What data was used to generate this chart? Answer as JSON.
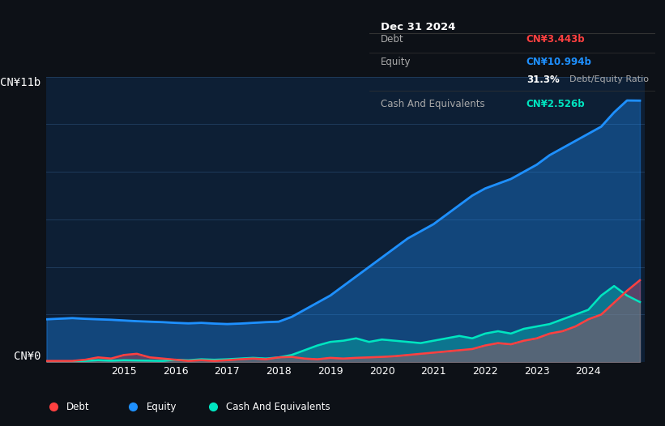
{
  "bg_color": "#0d1117",
  "chart_bg": "#0d1f35",
  "plot_bg": "#0d1f35",
  "title_box_bg": "#0a0a0a",
  "ylim": [
    0,
    12
  ],
  "ylabel_top": "CN¥11b",
  "ylabel_bottom": "CN¥0",
  "x_ticks": [
    2014.5,
    2015,
    2016,
    2017,
    2018,
    2019,
    2020,
    2021,
    2022,
    2023,
    2024
  ],
  "x_tick_labels": [
    "",
    "2015",
    "2016",
    "2017",
    "2018",
    "2019",
    "2020",
    "2021",
    "2022",
    "2023",
    "2024"
  ],
  "equity_color": "#1e90ff",
  "debt_color": "#ff4040",
  "cash_color": "#00e5c0",
  "legend_bg": "#1a2535",
  "tooltip": {
    "date": "Dec 31 2024",
    "debt_label": "Debt",
    "debt_value": "CN¥3.443b",
    "equity_label": "Equity",
    "equity_value": "CN¥10.994b",
    "ratio_value": "31.3%",
    "ratio_label": "Debt/Equity Ratio",
    "cash_label": "Cash And Equivalents",
    "cash_value": "CN¥2.526b"
  },
  "equity_data_x": [
    2013.5,
    2014.0,
    2014.25,
    2014.5,
    2014.75,
    2015.0,
    2015.25,
    2015.5,
    2015.75,
    2016.0,
    2016.25,
    2016.5,
    2016.75,
    2017.0,
    2017.25,
    2017.5,
    2017.75,
    2018.0,
    2018.25,
    2018.5,
    2018.75,
    2019.0,
    2019.25,
    2019.5,
    2019.75,
    2020.0,
    2020.25,
    2020.5,
    2020.75,
    2021.0,
    2021.25,
    2021.5,
    2021.75,
    2022.0,
    2022.25,
    2022.5,
    2022.75,
    2023.0,
    2023.25,
    2023.5,
    2023.75,
    2024.0,
    2024.25,
    2024.5,
    2024.75,
    2025.0
  ],
  "equity_data_y": [
    1.8,
    1.85,
    1.82,
    1.8,
    1.78,
    1.75,
    1.72,
    1.7,
    1.68,
    1.65,
    1.63,
    1.65,
    1.62,
    1.6,
    1.62,
    1.65,
    1.68,
    1.7,
    1.9,
    2.2,
    2.5,
    2.8,
    3.2,
    3.6,
    4.0,
    4.4,
    4.8,
    5.2,
    5.5,
    5.8,
    6.2,
    6.6,
    7.0,
    7.3,
    7.5,
    7.7,
    8.0,
    8.3,
    8.7,
    9.0,
    9.3,
    9.6,
    9.9,
    10.5,
    11.0,
    10.994
  ],
  "debt_data_x": [
    2013.5,
    2014.0,
    2014.25,
    2014.5,
    2014.75,
    2015.0,
    2015.25,
    2015.5,
    2015.75,
    2016.0,
    2016.25,
    2016.5,
    2016.75,
    2017.0,
    2017.25,
    2017.5,
    2017.75,
    2018.0,
    2018.25,
    2018.5,
    2018.75,
    2019.0,
    2019.25,
    2019.5,
    2019.75,
    2020.0,
    2020.25,
    2020.5,
    2020.75,
    2021.0,
    2021.25,
    2021.5,
    2021.75,
    2022.0,
    2022.25,
    2022.5,
    2022.75,
    2023.0,
    2023.25,
    2023.5,
    2023.75,
    2024.0,
    2024.25,
    2024.5,
    2024.75,
    2025.0
  ],
  "debt_data_y": [
    0.05,
    0.05,
    0.1,
    0.2,
    0.15,
    0.3,
    0.35,
    0.2,
    0.15,
    0.1,
    0.05,
    0.08,
    0.05,
    0.08,
    0.12,
    0.15,
    0.12,
    0.2,
    0.22,
    0.15,
    0.12,
    0.18,
    0.15,
    0.18,
    0.2,
    0.22,
    0.25,
    0.3,
    0.35,
    0.4,
    0.45,
    0.5,
    0.55,
    0.7,
    0.8,
    0.75,
    0.9,
    1.0,
    1.2,
    1.3,
    1.5,
    1.8,
    2.0,
    2.5,
    3.0,
    3.443
  ],
  "cash_data_x": [
    2013.5,
    2014.0,
    2014.25,
    2014.5,
    2014.75,
    2015.0,
    2015.25,
    2015.5,
    2015.75,
    2016.0,
    2016.25,
    2016.5,
    2016.75,
    2017.0,
    2017.25,
    2017.5,
    2017.75,
    2018.0,
    2018.25,
    2018.5,
    2018.75,
    2019.0,
    2019.25,
    2019.5,
    2019.75,
    2020.0,
    2020.25,
    2020.5,
    2020.75,
    2021.0,
    2021.25,
    2021.5,
    2021.75,
    2022.0,
    2022.25,
    2022.5,
    2022.75,
    2023.0,
    2023.25,
    2023.5,
    2023.75,
    2024.0,
    2024.25,
    2024.5,
    2024.75,
    2025.0
  ],
  "cash_data_y": [
    0.02,
    0.03,
    0.05,
    0.08,
    0.06,
    0.08,
    0.07,
    0.06,
    0.05,
    0.1,
    0.08,
    0.12,
    0.1,
    0.12,
    0.15,
    0.18,
    0.15,
    0.2,
    0.3,
    0.5,
    0.7,
    0.85,
    0.9,
    1.0,
    0.85,
    0.95,
    0.9,
    0.85,
    0.8,
    0.9,
    1.0,
    1.1,
    1.0,
    1.2,
    1.3,
    1.2,
    1.4,
    1.5,
    1.6,
    1.8,
    2.0,
    2.2,
    2.8,
    3.2,
    2.8,
    2.526
  ]
}
